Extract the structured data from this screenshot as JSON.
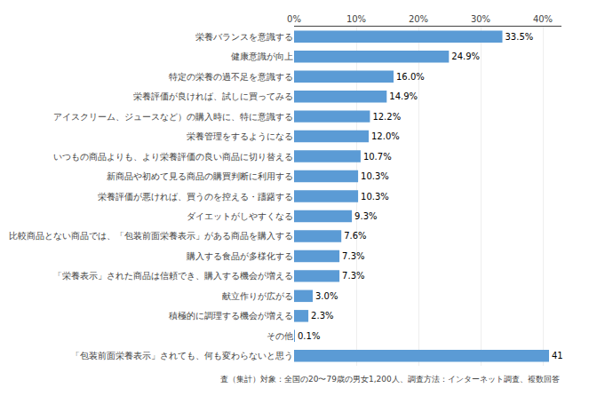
{
  "chart_data": {
    "type": "bar",
    "orientation": "horizontal",
    "categories": [
      "栄養バランスを意識する",
      "健康意識が向上",
      "特定の栄養の過不足を意識する",
      "栄養評価が良ければ、試しに買ってみる",
      "アイスクリーム、ジュースなど）の購入時に、特に意識する",
      "栄養管理をするようになる",
      "いつもの商品よりも、より栄養評価の良い商品に切り替える",
      "新商品や初めて見る商品の購買判断に利用する",
      "栄養評価が悪ければ、買うのを控える・躊躇する",
      "ダイエットがしやすくなる",
      "比較商品とない商品では、「包装前面栄養表示」がある商品を購入する",
      "購入する食品が多様化する",
      "「栄養表示」された商品は信頼でき、購入する機会が増える",
      "献立作りが広がる",
      "積極的に調理する機会が増える",
      "その他",
      "「包装前面栄養表示」されても、何も変わらないと思う"
    ],
    "values": [
      33.5,
      24.9,
      16.0,
      14.9,
      12.2,
      12.0,
      10.7,
      10.3,
      10.3,
      9.3,
      7.6,
      7.3,
      7.3,
      3.0,
      2.3,
      0.1,
      41.0
    ],
    "value_labels": [
      "33.5%",
      "24.9%",
      "16.0%",
      "14.9%",
      "12.2%",
      "12.0%",
      "10.7%",
      "10.3%",
      "10.3%",
      "9.3%",
      "7.6%",
      "7.3%",
      "7.3%",
      "3.0%",
      "2.3%",
      "0.1%",
      "41"
    ],
    "data_labels": true,
    "color": "#5b9bd5",
    "xlim": [
      0,
      43
    ],
    "xticks": [
      {
        "value": 0,
        "label": "0%"
      },
      {
        "value": 10,
        "label": "10%"
      },
      {
        "value": 20,
        "label": "20%"
      },
      {
        "value": 30,
        "label": "30%"
      },
      {
        "value": 40,
        "label": "40%"
      }
    ],
    "grid": true,
    "footnote": "査（集計）対象：全国の20〜79歳の男女1,200人、調査方法：インターネット調査、複数回答"
  }
}
